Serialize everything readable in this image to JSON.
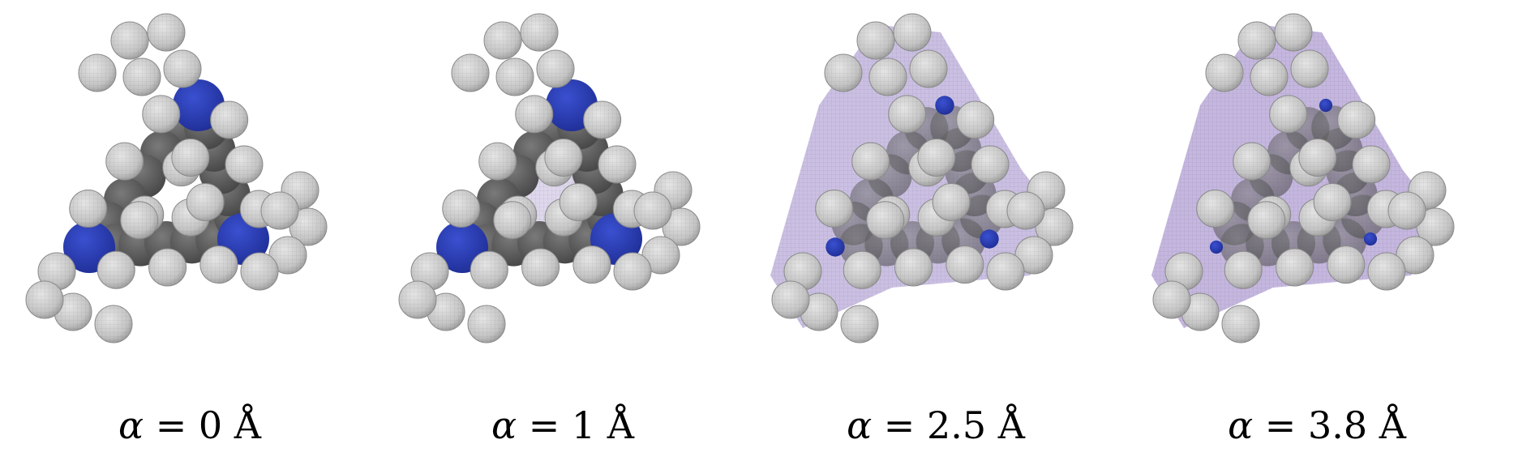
{
  "panels": [
    {
      "caption": {
        "symbol": "α",
        "equals": " = ",
        "value": "0",
        "unit": " Å"
      },
      "surface_coverage": 0.0
    },
    {
      "caption": {
        "symbol": "α",
        "equals": " = ",
        "value": "1",
        "unit": " Å"
      },
      "surface_coverage": 0.2
    },
    {
      "caption": {
        "symbol": "α",
        "equals": " = ",
        "value": "2.5",
        "unit": " Å"
      },
      "surface_coverage": 0.75
    },
    {
      "caption": {
        "symbol": "α",
        "equals": " = ",
        "value": "3.8",
        "unit": " Å"
      },
      "surface_coverage": 0.95
    }
  ],
  "colors": {
    "hydrogen": "#c9c9c9",
    "carbon": "#606060",
    "nitrogen": "#2b3fb8",
    "surface": "#b8a8d8"
  }
}
